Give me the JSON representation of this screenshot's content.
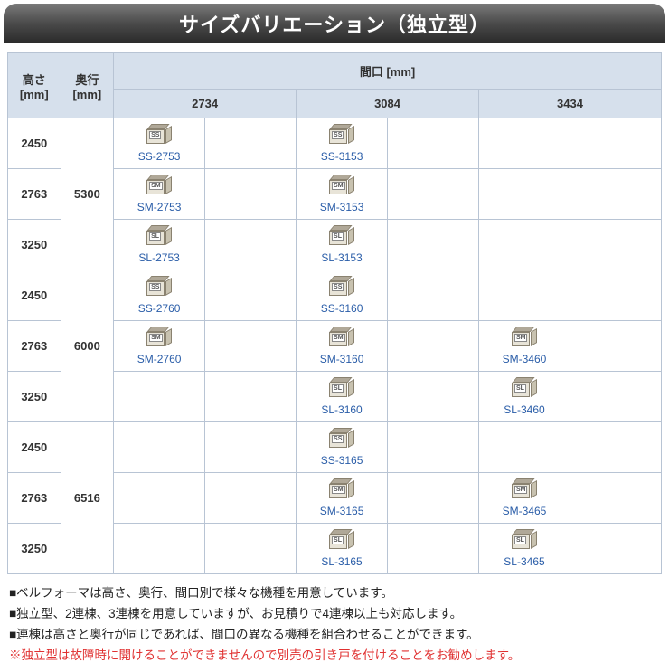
{
  "title": "サイズバリエーション（独立型）",
  "headers": {
    "height": "高さ\n[mm]",
    "depth": "奥行\n[mm]",
    "width_group": "間口 [mm]",
    "widths": [
      "2734",
      "3084",
      "3434"
    ]
  },
  "groups": [
    {
      "depth": "5300",
      "rows": [
        {
          "height": "2450",
          "cells": [
            {
              "label": "SS-2753",
              "badge": "SS"
            },
            null,
            {
              "label": "SS-3153",
              "badge": "SS"
            },
            null,
            null,
            null
          ]
        },
        {
          "height": "2763",
          "cells": [
            {
              "label": "SM-2753",
              "badge": "SM"
            },
            null,
            {
              "label": "SM-3153",
              "badge": "SM"
            },
            null,
            null,
            null
          ]
        },
        {
          "height": "3250",
          "cells": [
            {
              "label": "SL-2753",
              "badge": "SL"
            },
            null,
            {
              "label": "SL-3153",
              "badge": "SL"
            },
            null,
            null,
            null
          ]
        }
      ]
    },
    {
      "depth": "6000",
      "rows": [
        {
          "height": "2450",
          "cells": [
            {
              "label": "SS-2760",
              "badge": "SS"
            },
            null,
            {
              "label": "SS-3160",
              "badge": "SS"
            },
            null,
            null,
            null
          ]
        },
        {
          "height": "2763",
          "cells": [
            {
              "label": "SM-2760",
              "badge": "SM"
            },
            null,
            {
              "label": "SM-3160",
              "badge": "SM"
            },
            null,
            {
              "label": "SM-3460",
              "badge": "SM"
            },
            null
          ]
        },
        {
          "height": "3250",
          "cells": [
            null,
            null,
            {
              "label": "SL-3160",
              "badge": "SL"
            },
            null,
            {
              "label": "SL-3460",
              "badge": "SL"
            },
            null
          ]
        }
      ]
    },
    {
      "depth": "6516",
      "rows": [
        {
          "height": "2450",
          "cells": [
            null,
            null,
            {
              "label": "SS-3165",
              "badge": "SS"
            },
            null,
            null,
            null
          ]
        },
        {
          "height": "2763",
          "cells": [
            null,
            null,
            {
              "label": "SM-3165",
              "badge": "SM"
            },
            null,
            {
              "label": "SM-3465",
              "badge": "SM"
            },
            null
          ]
        },
        {
          "height": "3250",
          "cells": [
            null,
            null,
            {
              "label": "SL-3165",
              "badge": "SL"
            },
            null,
            {
              "label": "SL-3465",
              "badge": "SL"
            },
            null
          ]
        }
      ]
    }
  ],
  "notes": [
    "■ベルフォーマは高さ、奥行、間口別で様々な機種を用意しています。",
    "■独立型、2連棟、3連棟を用意していますが、お見積りで4連棟以上も対応します。",
    "■連棟は高さと奥行が同じであれば、間口の異なる機種を組合わせることができます。"
  ],
  "warning": "※独立型は故障時に開けることができませんので別売の引き戸を付けることをお勧めします。",
  "style": {
    "header_bg": "#d6e0ec",
    "border_color": "#b8c4d4",
    "link_color": "#2a5da8",
    "warn_color": "#e03030"
  }
}
